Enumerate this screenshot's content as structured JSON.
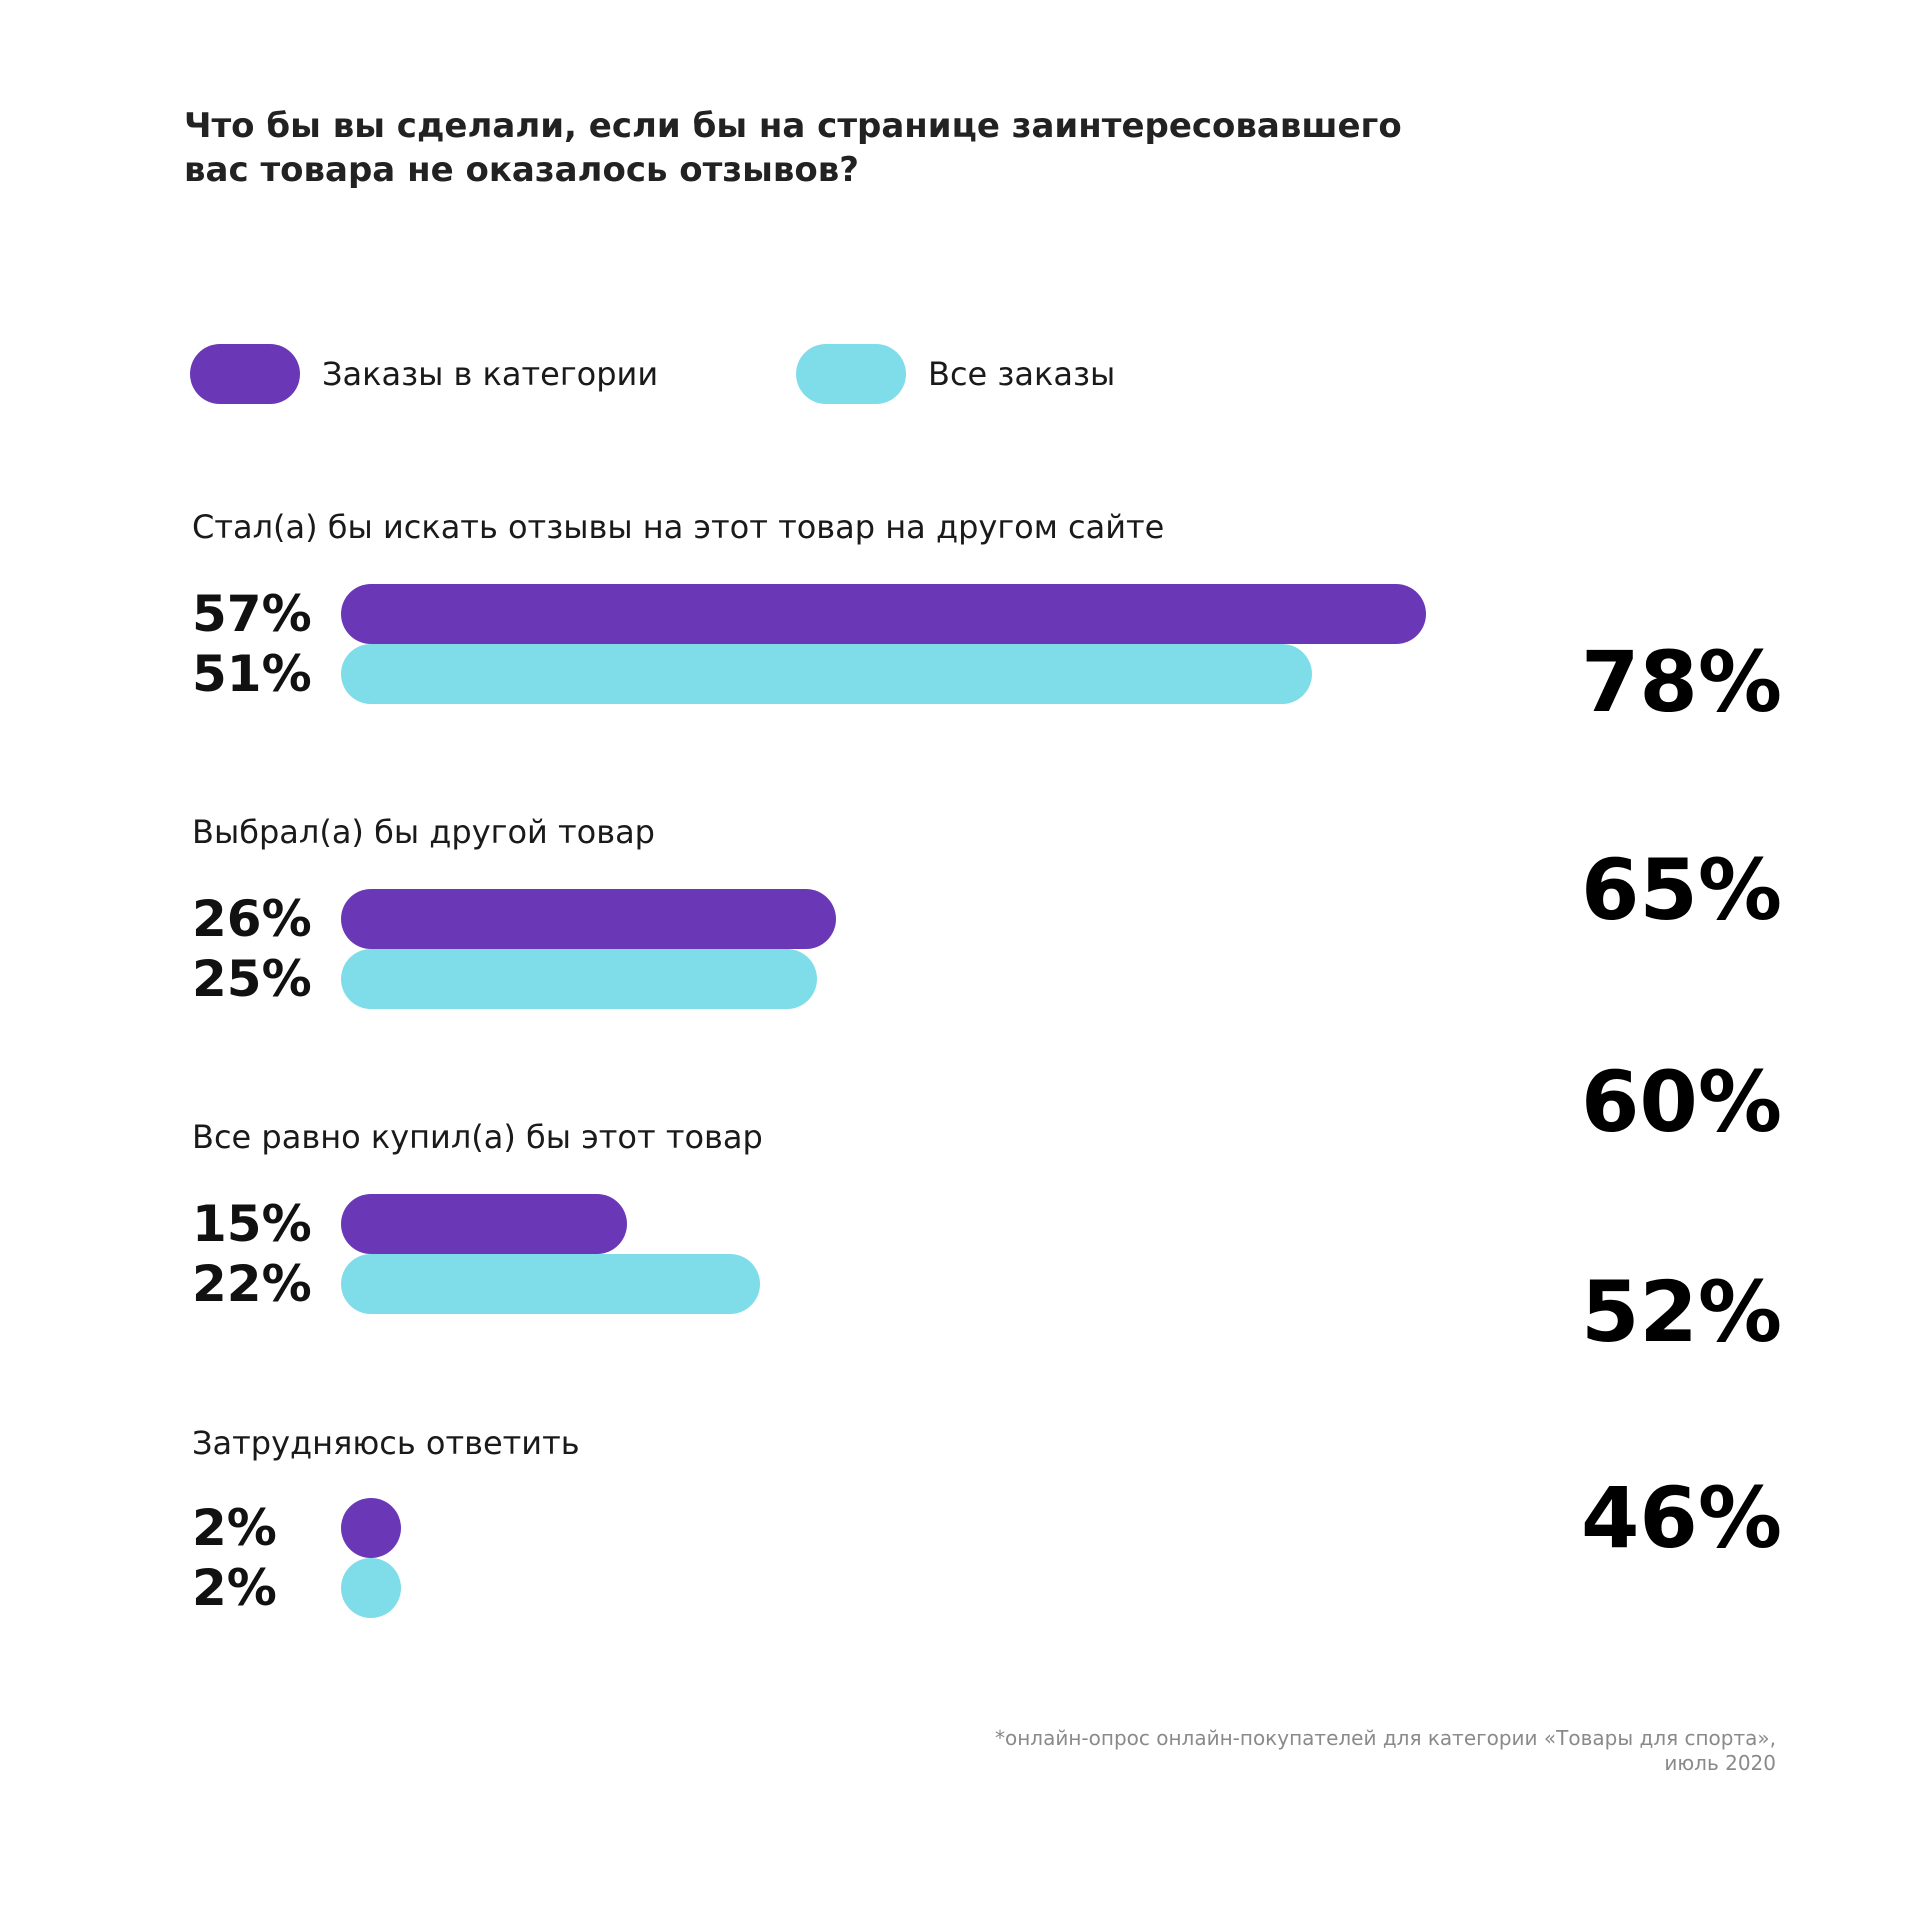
{
  "title_line1": "Что бы вы сделали, если бы на странице заинтересовавшего",
  "title_line2": "вас товара не оказалось отзывов?",
  "colors": {
    "category": "#6a38b6",
    "all": "#7fdde9"
  },
  "chart_data": {
    "type": "bar",
    "orientation": "horizontal",
    "unit": "%",
    "categories": [
      "Стал(а) бы искать отзывы на этот товар на другом сайте",
      "Выбрал(а) бы другой товар",
      "Все равно купил(а) бы этот товар",
      "Затрудняюсь ответить"
    ],
    "series": [
      {
        "name": "Заказы в категории",
        "values": [
          57,
          26,
          15,
          2
        ],
        "labels": [
          "57%",
          "26%",
          "15%",
          "2%"
        ]
      },
      {
        "name": "Все заказы",
        "values": [
          51,
          25,
          22,
          2
        ],
        "labels": [
          "51%",
          "25%",
          "22%",
          "2%"
        ]
      }
    ],
    "xlim": [
      0,
      57
    ],
    "annotations": [
      "78%",
      "65%",
      "60%",
      "52%",
      "46%"
    ],
    "legend_position": "top-left"
  },
  "footnote_line1": "*онлайн-опрос онлайн-покупателей для категории «Товары для спорта»,",
  "footnote_line2": "июль 2020"
}
